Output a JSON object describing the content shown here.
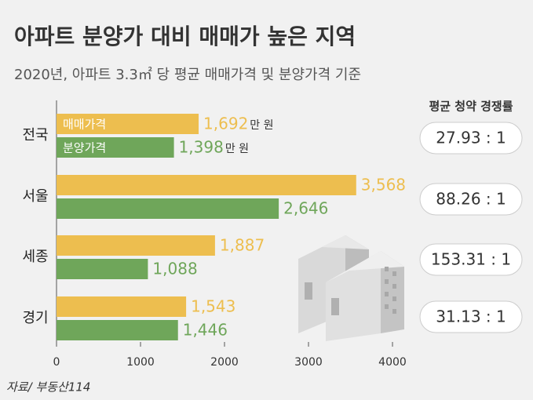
{
  "chart_data": {
    "type": "hbar",
    "title": "아파트 분양가 대비 매매가 높은 지역",
    "subtitle": "2020년, 아파트 3.3㎡ 당 평균 매매가격 및 분양가격 기준",
    "categories": [
      "전국",
      "서울",
      "세종",
      "경기"
    ],
    "series": [
      {
        "name": "매매가격",
        "color": "#edbe4f",
        "values": [
          1692,
          3568,
          1887,
          1543
        ],
        "value_labels": [
          "1,692",
          "3,568",
          "1,887",
          "1,543"
        ]
      },
      {
        "name": "분양가격",
        "color": "#6fa65a",
        "values": [
          1398,
          2646,
          1088,
          1446
        ],
        "value_labels": [
          "1,398",
          "2,646",
          "1,088",
          "1,446"
        ]
      }
    ],
    "unit": "만 원",
    "xlim": [
      0,
      4000
    ],
    "xticks": [
      0,
      1000,
      2000,
      3000,
      4000
    ],
    "side_table": {
      "title": "평균 청약 경쟁률",
      "labels": [
        "27.93 : 1",
        "88.26 : 1",
        "153.31 : 1",
        "31.13 : 1"
      ]
    },
    "source": "자료/ 부동산114"
  }
}
